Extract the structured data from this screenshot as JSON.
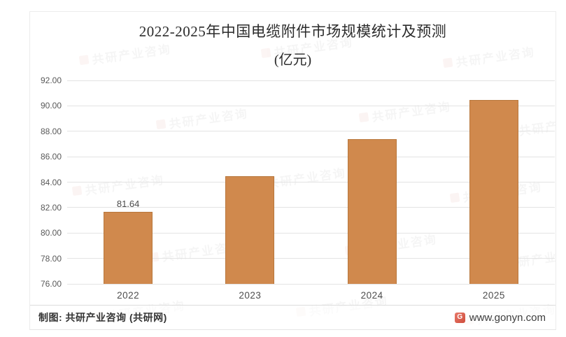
{
  "title": {
    "line1": "2022-2025年中国电缆附件市场规模统计及预测",
    "line2": "(亿元)"
  },
  "chart_data": {
    "type": "bar",
    "title": "2022-2025年中国电缆附件市场规模统计及预测(亿元)",
    "categories": [
      "2022",
      "2023",
      "2024",
      "2025"
    ],
    "values": [
      81.64,
      84.45,
      87.4,
      90.45
    ],
    "point_labels": [
      "81.64",
      null,
      null,
      null
    ],
    "xlabel": "",
    "ylabel": "",
    "ylim": [
      76,
      92
    ],
    "ytick_step": 2,
    "yticks": [
      "92.00",
      "90.00",
      "88.00",
      "86.00",
      "84.00",
      "82.00",
      "80.00",
      "78.00",
      "76.00"
    ],
    "grid": true,
    "legend": false,
    "bar_color": "#d0894d"
  },
  "footer": {
    "source": "制图: 共研产业咨询 (共研网)",
    "website": "www.gonyn.com",
    "logo_glyph": "G"
  },
  "watermark": {
    "text": "共研产业咨询"
  },
  "colors": {
    "bar": "#d0894d",
    "gridline": "#e3e3e3",
    "title_text": "#2b2b2b",
    "tick_text": "#595959",
    "footer_text": "#333333",
    "logo_red": "#cf4d3c"
  }
}
